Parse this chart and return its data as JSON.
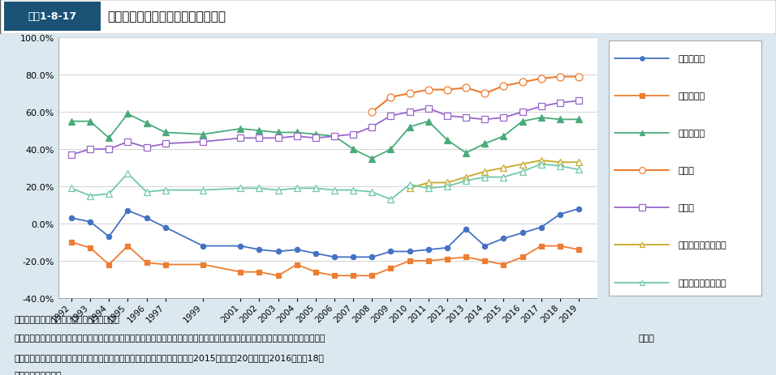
{
  "years": [
    1992,
    1993,
    1994,
    1995,
    1996,
    1997,
    1999,
    2001,
    2002,
    2003,
    2004,
    2005,
    2006,
    2007,
    2008,
    2009,
    2010,
    2011,
    2012,
    2013,
    2014,
    2015,
    2016,
    2017,
    2018,
    2019
  ],
  "series": {
    "所得・収入": [
      3.0,
      1.0,
      -7.0,
      7.0,
      3.0,
      -2.0,
      -12.0,
      -12.0,
      -14.0,
      -15.0,
      -14.0,
      -16.0,
      -18.0,
      -18.0,
      -18.0,
      -15.0,
      -15.0,
      -14.0,
      -13.0,
      -3.0,
      -12.0,
      -8.0,
      -5.0,
      -2.0,
      5.0,
      8.0
    ],
    "資産・貯蓄": [
      -10.0,
      -13.0,
      -22.0,
      -12.0,
      -21.0,
      -22.0,
      -22.0,
      -26.0,
      -26.0,
      -28.0,
      -22.0,
      -26.0,
      -28.0,
      -28.0,
      -28.0,
      -24.0,
      -20.0,
      -20.0,
      -19.0,
      -18.0,
      -20.0,
      -22.0,
      -18.0,
      -12.0,
      -12.0,
      -14.0
    ],
    "耐久消費財": [
      55.0,
      55.0,
      46.0,
      59.0,
      54.0,
      49.0,
      48.0,
      51.0,
      50.0,
      49.0,
      49.0,
      48.0,
      47.0,
      40.0,
      35.0,
      40.0,
      52.0,
      55.0,
      45.0,
      38.0,
      43.0,
      47.0,
      55.0,
      57.0,
      56.0,
      56.0
    ],
    "食生活": [
      null,
      null,
      null,
      null,
      null,
      null,
      null,
      null,
      null,
      null,
      null,
      null,
      null,
      null,
      60.0,
      68.0,
      70.0,
      72.0,
      72.0,
      73.0,
      70.0,
      74.0,
      76.0,
      78.0,
      79.0,
      79.0
    ],
    "住生活": [
      37.0,
      40.0,
      40.0,
      44.0,
      41.0,
      43.0,
      44.0,
      46.0,
      46.0,
      46.0,
      47.0,
      46.0,
      47.0,
      48.0,
      52.0,
      58.0,
      60.0,
      62.0,
      58.0,
      57.0,
      56.0,
      57.0,
      60.0,
      63.0,
      65.0,
      66.0
    ],
    "自己啓発・能力向上": [
      null,
      null,
      null,
      null,
      null,
      null,
      null,
      null,
      null,
      null,
      null,
      null,
      null,
      null,
      null,
      null,
      19.0,
      22.0,
      22.0,
      25.0,
      28.0,
      30.0,
      32.0,
      34.0,
      33.0,
      33.0
    ],
    "レジャー・余暇生活": [
      19.0,
      15.0,
      16.0,
      27.0,
      17.0,
      18.0,
      18.0,
      19.0,
      19.0,
      18.0,
      19.0,
      19.0,
      18.0,
      18.0,
      17.0,
      13.0,
      21.0,
      19.0,
      20.0,
      23.0,
      25.0,
      25.0,
      28.0,
      32.0,
      31.0,
      29.0
    ]
  },
  "line_styles": {
    "所得・収入": {
      "color": "#4472c4",
      "marker": "o",
      "filled": true,
      "ms": 4.5,
      "lw": 1.3
    },
    "資産・貯蓄": {
      "color": "#ed7d31",
      "marker": "s",
      "filled": true,
      "ms": 4.5,
      "lw": 1.3
    },
    "耐久消費財": {
      "color": "#4aab7a",
      "marker": "^",
      "filled": true,
      "ms": 5.5,
      "lw": 1.3
    },
    "食生活": {
      "color": "#ed7d31",
      "marker": "o",
      "filled": false,
      "ms": 6.5,
      "lw": 1.5
    },
    "住生活": {
      "color": "#9966cc",
      "marker": "s",
      "filled": false,
      "ms": 6.0,
      "lw": 1.3
    },
    "自己啓発・能力向上": {
      "color": "#c8a828",
      "marker": "^",
      "filled": false,
      "ms": 5.5,
      "lw": 1.3
    },
    "レジャー・余暇生活": {
      "color": "#70c8a8",
      "marker": "^",
      "filled": false,
      "ms": 5.5,
      "lw": 1.3
    }
  },
  "ylim": [
    -40.0,
    100.0
  ],
  "yticks": [
    -40.0,
    -20.0,
    0.0,
    20.0,
    40.0,
    60.0,
    80.0,
    100.0
  ],
  "header_label": "図表1-8-17",
  "header_title": "現在の生活の各面での満足度の推移",
  "footer_lines": [
    "資料：内閣府「国民生活に関する世論調査」",
    "（注）　グラフの値は、現在の生活の各面での「満足度」（「満足している」と「まあ満足している」の計）から「不満度」（「や",
    "　　　や不満だ」と「不満だ」の計）の割合を差し引いた値。調査対象は、2015年までは20歳以上、2016年から18歳",
    "　　　以上である。"
  ],
  "background_color": "#dce8f0",
  "plot_bg": "#ffffff",
  "header_blue": "#1a5276",
  "header_bg": "#ffffff",
  "grid_color": "#cccccc"
}
